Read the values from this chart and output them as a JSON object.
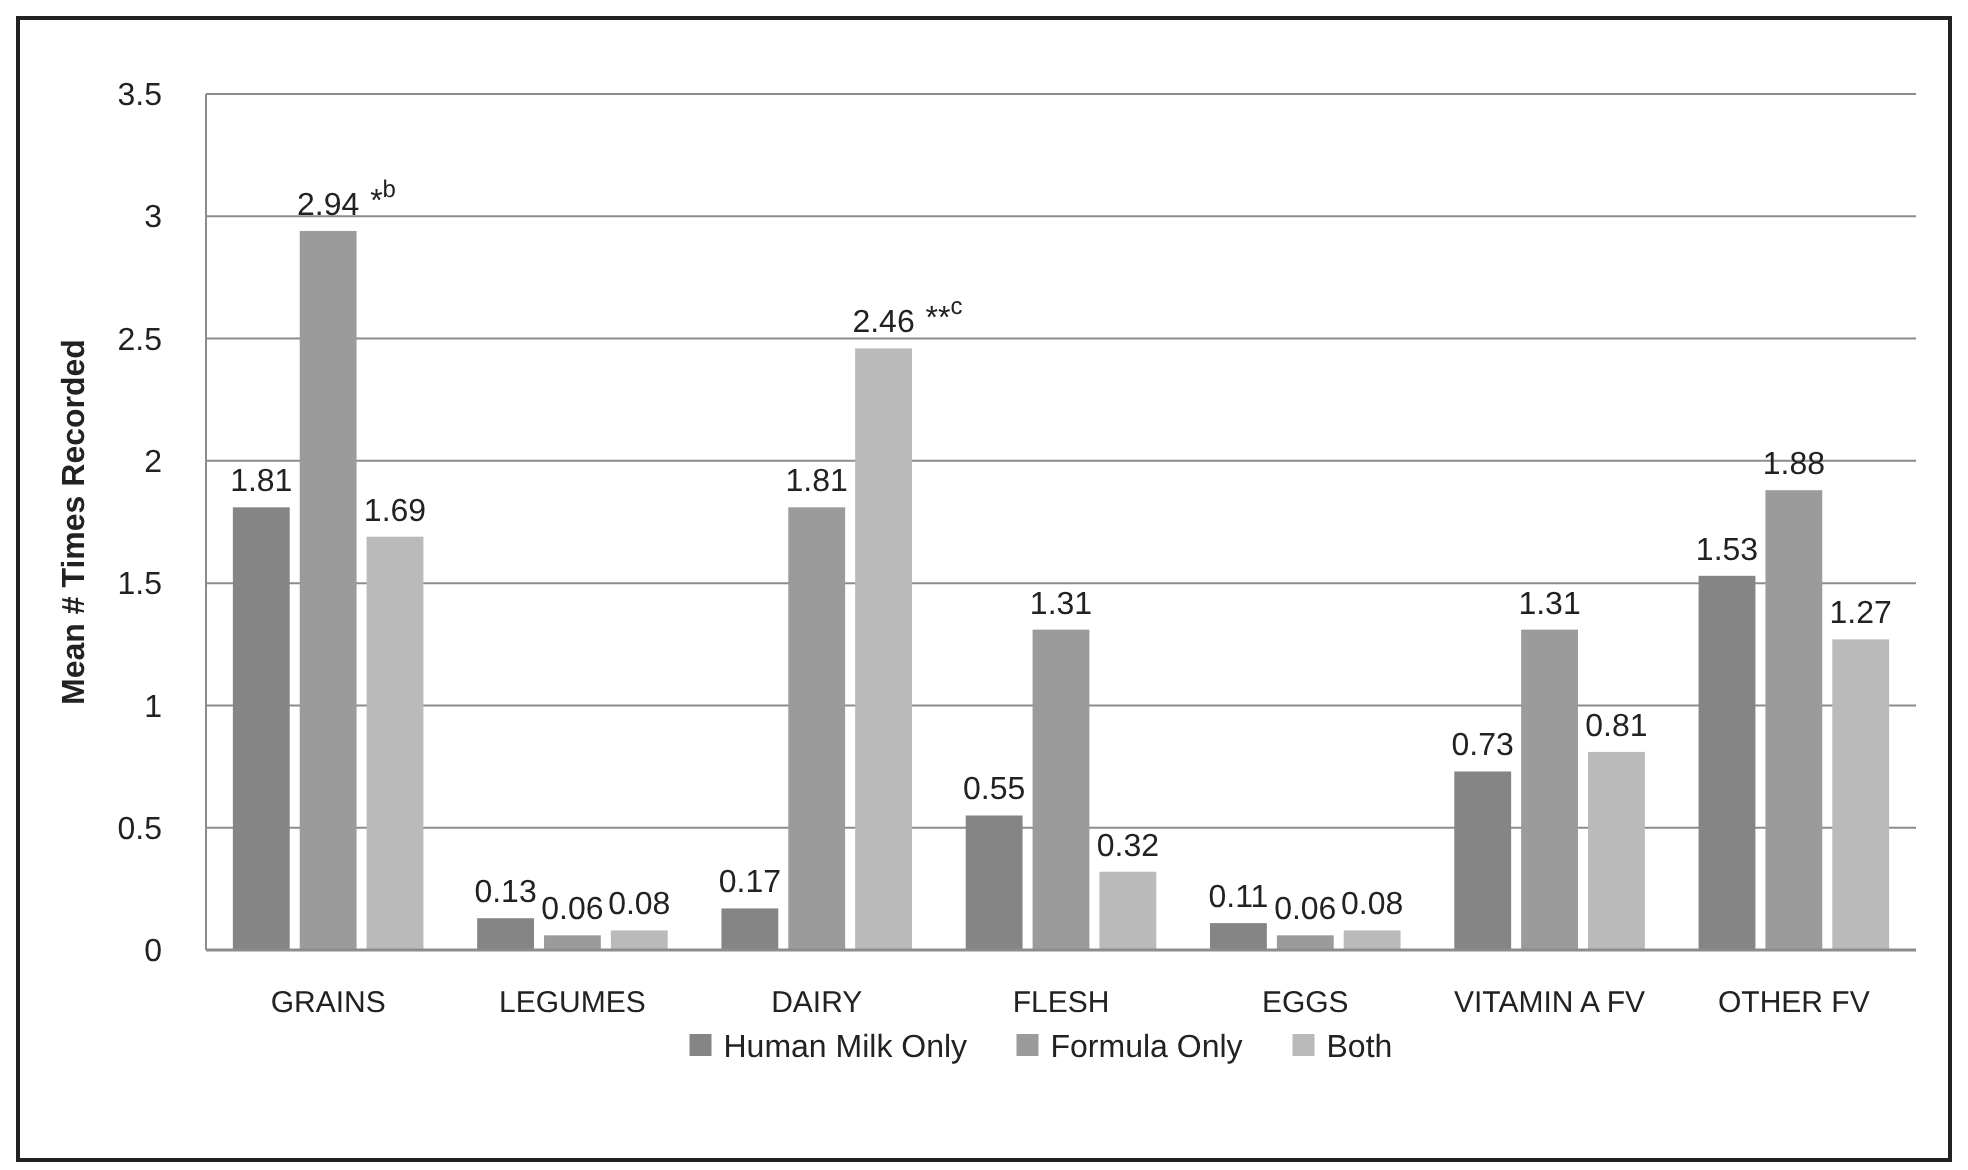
{
  "chart_data": {
    "type": "bar",
    "ylabel": "Mean # Times Recorded",
    "categories": [
      "GRAINS",
      "LEGUMES",
      "DAIRY",
      "FLESH",
      "EGGS",
      "VITAMIN A FV",
      "OTHER FV"
    ],
    "series": [
      {
        "name": "Human Milk Only",
        "color": "#858585",
        "values": [
          1.81,
          0.13,
          0.17,
          0.55,
          0.11,
          0.73,
          1.53
        ]
      },
      {
        "name": "Formula Only",
        "color": "#9b9b9b",
        "values": [
          2.94,
          0.06,
          1.81,
          1.31,
          0.06,
          1.31,
          1.88
        ]
      },
      {
        "name": "Both",
        "color": "#bababa",
        "values": [
          1.69,
          0.08,
          2.46,
          0.32,
          0.08,
          0.81,
          1.27
        ]
      }
    ],
    "ylim": [
      0,
      3.5
    ],
    "yticks": [
      0,
      0.5,
      1,
      1.5,
      2,
      2.5,
      3,
      3.5
    ],
    "grid": "y",
    "legend": "bottom",
    "data_labels": true,
    "annotations": [
      "*$^{b}$",
      "**$^{c}$"
    ]
  }
}
